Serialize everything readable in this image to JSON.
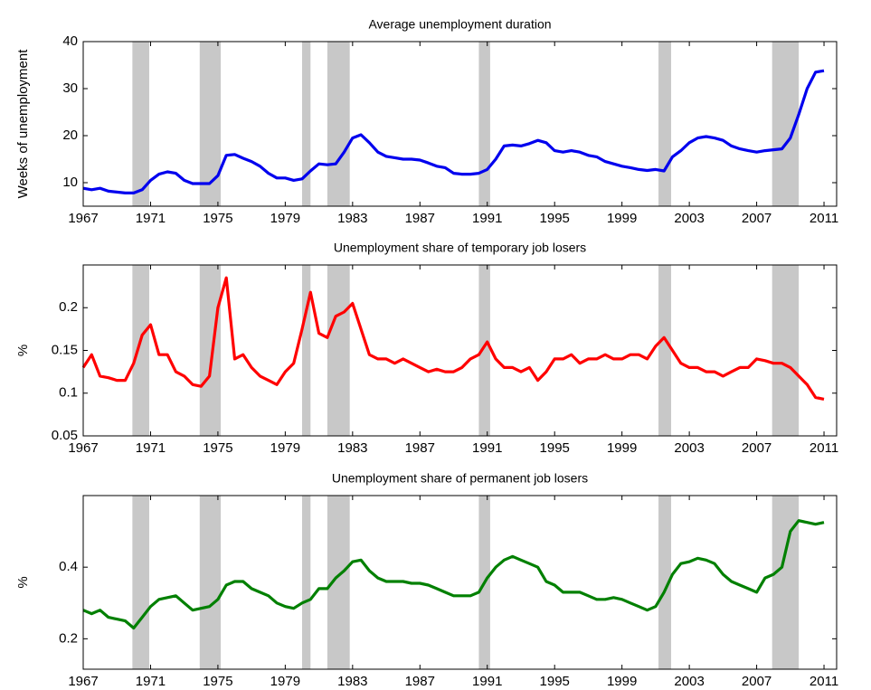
{
  "chart_data": [
    {
      "type": "line",
      "title": "Average unemployment duration",
      "y_label": "Weeks of unemployment",
      "x": [
        1967,
        1967.5,
        1968,
        1968.5,
        1969,
        1969.5,
        1970,
        1970.5,
        1971,
        1971.5,
        1972,
        1972.5,
        1973,
        1973.5,
        1974,
        1974.5,
        1975,
        1975.5,
        1976,
        1976.5,
        1977,
        1977.5,
        1978,
        1978.5,
        1979,
        1979.5,
        1980,
        1980.5,
        1981,
        1981.5,
        1982,
        1982.5,
        1983,
        1983.5,
        1984,
        1984.5,
        1985,
        1985.5,
        1986,
        1986.5,
        1987,
        1987.5,
        1988,
        1988.5,
        1989,
        1989.5,
        1990,
        1990.5,
        1991,
        1991.5,
        1992,
        1992.5,
        1993,
        1993.5,
        1994,
        1994.5,
        1995,
        1995.5,
        1996,
        1996.5,
        1997,
        1997.5,
        1998,
        1998.5,
        1999,
        1999.5,
        2000,
        2000.5,
        2001,
        2001.5,
        2002,
        2002.5,
        2003,
        2003.5,
        2004,
        2004.5,
        2005,
        2005.5,
        2006,
        2006.5,
        2007,
        2007.5,
        2008,
        2008.5,
        2009,
        2009.5,
        2010,
        2010.5,
        2011
      ],
      "series": [
        {
          "name": "Average unemployment duration",
          "color": "#0000ee",
          "values": [
            8.8,
            8.5,
            8.8,
            8.2,
            8.0,
            7.8,
            7.8,
            8.5,
            10.5,
            11.8,
            12.3,
            12.0,
            10.5,
            9.8,
            9.8,
            9.8,
            11.5,
            15.8,
            16.0,
            15.2,
            14.5,
            13.5,
            12.0,
            11.0,
            11.0,
            10.5,
            10.8,
            12.5,
            14.0,
            13.8,
            14.0,
            16.5,
            19.5,
            20.2,
            18.5,
            16.5,
            15.6,
            15.3,
            15.0,
            15.0,
            14.8,
            14.2,
            13.5,
            13.2,
            12.0,
            11.8,
            11.8,
            12.0,
            12.8,
            15.0,
            17.8,
            18.0,
            17.8,
            18.3,
            19.0,
            18.5,
            16.8,
            16.5,
            16.8,
            16.5,
            15.8,
            15.5,
            14.5,
            14.0,
            13.5,
            13.2,
            12.8,
            12.6,
            12.8,
            12.5,
            15.5,
            16.8,
            18.5,
            19.5,
            19.8,
            19.5,
            19.0,
            17.8,
            17.2,
            16.8,
            16.5,
            16.8,
            17.0,
            17.2,
            19.5,
            24.5,
            30.0,
            33.5,
            33.8
          ]
        }
      ],
      "shaded": [
        [
          1969.92,
          1970.92
        ],
        [
          1973.92,
          1975.17
        ],
        [
          1980.0,
          1980.5
        ],
        [
          1981.5,
          1982.83
        ],
        [
          1990.5,
          1991.17
        ],
        [
          2001.17,
          2001.92
        ],
        [
          2007.92,
          2009.5
        ]
      ],
      "xlim": [
        1967,
        2011.75
      ],
      "xticks": [
        1967,
        1971,
        1975,
        1979,
        1983,
        1987,
        1991,
        1995,
        1999,
        2003,
        2007,
        2011
      ],
      "ylim": [
        5,
        40
      ],
      "yticks": [
        10,
        20,
        30,
        40
      ]
    },
    {
      "type": "line",
      "title": "Unemployment share of temporary job losers",
      "y_label": "%",
      "x": [
        1967,
        1967.5,
        1968,
        1968.5,
        1969,
        1969.5,
        1970,
        1970.5,
        1971,
        1971.5,
        1972,
        1972.5,
        1973,
        1973.5,
        1974,
        1974.5,
        1975,
        1975.5,
        1976,
        1976.5,
        1977,
        1977.5,
        1978,
        1978.5,
        1979,
        1979.5,
        1980,
        1980.5,
        1981,
        1981.5,
        1982,
        1982.5,
        1983,
        1983.5,
        1984,
        1984.5,
        1985,
        1985.5,
        1986,
        1986.5,
        1987,
        1987.5,
        1988,
        1988.5,
        1989,
        1989.5,
        1990,
        1990.5,
        1991,
        1991.5,
        1992,
        1992.5,
        1993,
        1993.5,
        1994,
        1994.5,
        1995,
        1995.5,
        1996,
        1996.5,
        1997,
        1997.5,
        1998,
        1998.5,
        1999,
        1999.5,
        2000,
        2000.5,
        2001,
        2001.5,
        2002,
        2002.5,
        2003,
        2003.5,
        2004,
        2004.5,
        2005,
        2005.5,
        2006,
        2006.5,
        2007,
        2007.5,
        2008,
        2008.5,
        2009,
        2009.5,
        2010,
        2010.5,
        2011
      ],
      "series": [
        {
          "name": "Unemployment share of temporary job losers",
          "color": "#ff0000",
          "values": [
            0.13,
            0.145,
            0.12,
            0.118,
            0.115,
            0.115,
            0.135,
            0.168,
            0.18,
            0.145,
            0.145,
            0.125,
            0.12,
            0.11,
            0.108,
            0.12,
            0.2,
            0.235,
            0.14,
            0.145,
            0.13,
            0.12,
            0.115,
            0.11,
            0.125,
            0.135,
            0.175,
            0.218,
            0.17,
            0.165,
            0.19,
            0.195,
            0.205,
            0.175,
            0.145,
            0.14,
            0.14,
            0.135,
            0.14,
            0.135,
            0.13,
            0.125,
            0.128,
            0.125,
            0.125,
            0.13,
            0.14,
            0.145,
            0.16,
            0.14,
            0.13,
            0.13,
            0.125,
            0.13,
            0.115,
            0.125,
            0.14,
            0.14,
            0.145,
            0.135,
            0.14,
            0.14,
            0.145,
            0.14,
            0.14,
            0.145,
            0.145,
            0.14,
            0.155,
            0.165,
            0.15,
            0.135,
            0.13,
            0.13,
            0.125,
            0.125,
            0.12,
            0.125,
            0.13,
            0.13,
            0.14,
            0.138,
            0.135,
            0.135,
            0.13,
            0.12,
            0.11,
            0.095,
            0.093
          ]
        }
      ],
      "shaded": [
        [
          1969.92,
          1970.92
        ],
        [
          1973.92,
          1975.17
        ],
        [
          1980.0,
          1980.5
        ],
        [
          1981.5,
          1982.83
        ],
        [
          1990.5,
          1991.17
        ],
        [
          2001.17,
          2001.92
        ],
        [
          2007.92,
          2009.5
        ]
      ],
      "xlim": [
        1967,
        2011.75
      ],
      "xticks": [
        1967,
        1971,
        1975,
        1979,
        1983,
        1987,
        1991,
        1995,
        1999,
        2003,
        2007,
        2011
      ],
      "ylim": [
        0.05,
        0.25
      ],
      "yticks": [
        0.05,
        0.1,
        0.15,
        0.2
      ]
    },
    {
      "type": "line",
      "title": "Unemployment share of permanent job losers",
      "y_label": "%",
      "x": [
        1967,
        1967.5,
        1968,
        1968.5,
        1969,
        1969.5,
        1970,
        1970.5,
        1971,
        1971.5,
        1972,
        1972.5,
        1973,
        1973.5,
        1974,
        1974.5,
        1975,
        1975.5,
        1976,
        1976.5,
        1977,
        1977.5,
        1978,
        1978.5,
        1979,
        1979.5,
        1980,
        1980.5,
        1981,
        1981.5,
        1982,
        1982.5,
        1983,
        1983.5,
        1984,
        1984.5,
        1985,
        1985.5,
        1986,
        1986.5,
        1987,
        1987.5,
        1988,
        1988.5,
        1989,
        1989.5,
        1990,
        1990.5,
        1991,
        1991.5,
        1992,
        1992.5,
        1993,
        1993.5,
        1994,
        1994.5,
        1995,
        1995.5,
        1996,
        1996.5,
        1997,
        1997.5,
        1998,
        1998.5,
        1999,
        1999.5,
        2000,
        2000.5,
        2001,
        2001.5,
        2002,
        2002.5,
        2003,
        2003.5,
        2004,
        2004.5,
        2005,
        2005.5,
        2006,
        2006.5,
        2007,
        2007.5,
        2008,
        2008.5,
        2009,
        2009.5,
        2010,
        2010.5,
        2011
      ],
      "series": [
        {
          "name": "Unemployment share of permanent job losers",
          "color": "#008000",
          "values": [
            0.28,
            0.27,
            0.28,
            0.26,
            0.255,
            0.25,
            0.23,
            0.26,
            0.29,
            0.31,
            0.315,
            0.32,
            0.3,
            0.28,
            0.285,
            0.29,
            0.31,
            0.35,
            0.36,
            0.36,
            0.34,
            0.33,
            0.32,
            0.3,
            0.29,
            0.285,
            0.3,
            0.31,
            0.34,
            0.34,
            0.37,
            0.39,
            0.415,
            0.42,
            0.39,
            0.37,
            0.36,
            0.36,
            0.36,
            0.355,
            0.355,
            0.35,
            0.34,
            0.33,
            0.32,
            0.32,
            0.32,
            0.33,
            0.37,
            0.4,
            0.42,
            0.43,
            0.42,
            0.41,
            0.4,
            0.36,
            0.35,
            0.33,
            0.33,
            0.33,
            0.32,
            0.31,
            0.31,
            0.315,
            0.31,
            0.3,
            0.29,
            0.28,
            0.29,
            0.33,
            0.38,
            0.41,
            0.415,
            0.425,
            0.42,
            0.41,
            0.38,
            0.36,
            0.35,
            0.34,
            0.33,
            0.37,
            0.38,
            0.4,
            0.5,
            0.53,
            0.525,
            0.52,
            0.525
          ]
        }
      ],
      "shaded": [
        [
          1969.92,
          1970.92
        ],
        [
          1973.92,
          1975.17
        ],
        [
          1980.0,
          1980.5
        ],
        [
          1981.5,
          1982.83
        ],
        [
          1990.5,
          1991.17
        ],
        [
          2001.17,
          2001.92
        ],
        [
          2007.92,
          2009.5
        ]
      ],
      "xlim": [
        1967,
        2011.75
      ],
      "xticks": [
        1967,
        1971,
        1975,
        1979,
        1983,
        1987,
        1991,
        1995,
        1999,
        2003,
        2007,
        2011
      ],
      "ylim": [
        0.115,
        0.6
      ],
      "yticks": [
        0.2,
        0.4
      ]
    }
  ]
}
